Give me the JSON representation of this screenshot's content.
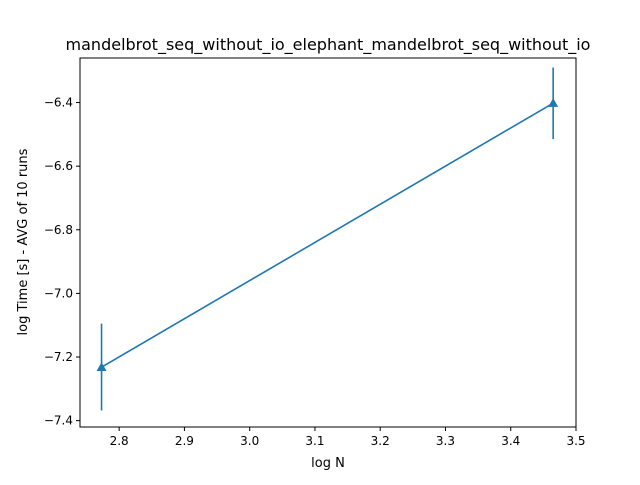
{
  "chart_data": {
    "type": "line",
    "title": "mandelbrot_seq_without_io_elephant_mandelbrot_seq_without_io",
    "xlabel": "log N",
    "ylabel": "log Time  [s] - AVG of 10 runs",
    "xlim": [
      2.74,
      3.5
    ],
    "ylim": [
      -7.42,
      -6.26
    ],
    "xticks": [
      2.8,
      2.9,
      3.0,
      3.1,
      3.2,
      3.3,
      3.4,
      3.5
    ],
    "xtick_labels": [
      "2.8",
      "2.9",
      "3.0",
      "3.1",
      "3.2",
      "3.3",
      "3.4",
      "3.5"
    ],
    "yticks": [
      -7.4,
      -7.2,
      -7.0,
      -6.8,
      -6.6,
      -6.4
    ],
    "ytick_labels": [
      "−7.4",
      "−7.2",
      "−7.0",
      "−6.8",
      "−6.6",
      "−6.4"
    ],
    "grid": false,
    "legend": null,
    "series": [
      {
        "color": "#1f77b4",
        "marker": "triangle-up",
        "points": [
          {
            "x": 2.773,
            "y": -7.232,
            "err_low": -7.368,
            "err_high": -7.095
          },
          {
            "x": 3.465,
            "y": -6.402,
            "err_low": -6.515,
            "err_high": -6.29
          }
        ]
      }
    ]
  }
}
